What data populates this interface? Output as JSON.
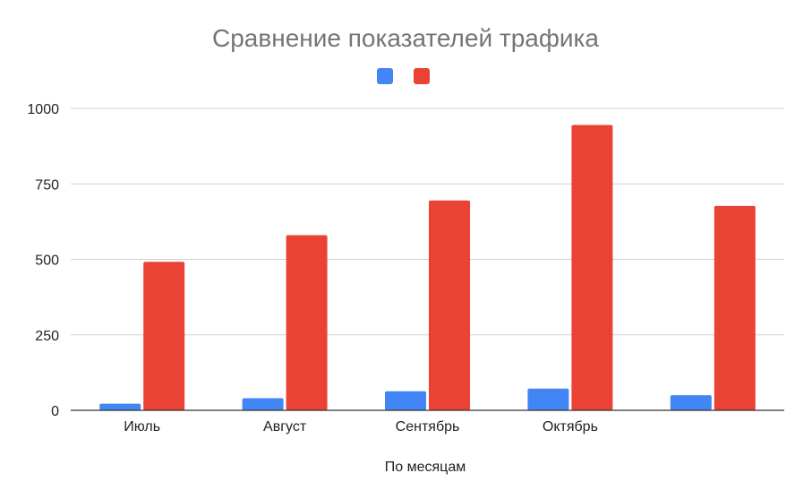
{
  "chart_data": {
    "type": "bar",
    "title": "Сравнение показателей трафика",
    "xlabel": "По месяцам",
    "ylabel": "",
    "categories": [
      "Июль",
      "Август",
      "Сентябрь",
      "Октябрь",
      ""
    ],
    "series": [
      {
        "color": "#4285f4",
        "values": [
          22,
          40,
          63,
          72,
          50
        ]
      },
      {
        "color": "#ea4335",
        "values": [
          492,
          580,
          695,
          945,
          677
        ]
      }
    ],
    "ylim": [
      0,
      1000
    ],
    "yticks": [
      0,
      250,
      500,
      750,
      1000
    ],
    "grid": true,
    "legend": "top"
  }
}
